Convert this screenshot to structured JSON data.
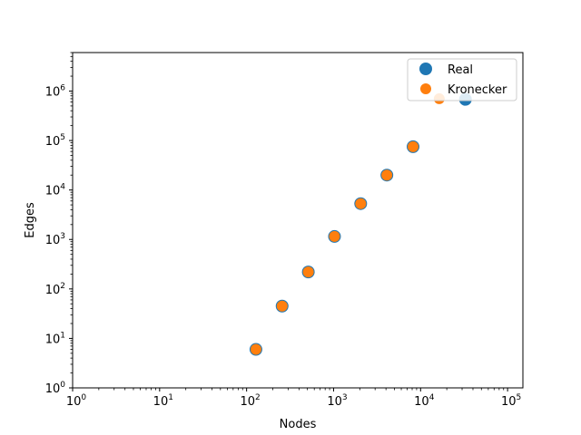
{
  "chart_data": {
    "type": "scatter",
    "title": "",
    "xlabel": "Nodes",
    "ylabel": "Edges",
    "xscale": "log",
    "yscale": "log",
    "xlim": [
      1,
      150000
    ],
    "ylim": [
      1,
      6000000
    ],
    "grid": false,
    "legend_position": "top-right",
    "x_ticks": [
      {
        "base": "10",
        "exp": "0",
        "value": 1
      },
      {
        "base": "10",
        "exp": "1",
        "value": 10
      },
      {
        "base": "10",
        "exp": "2",
        "value": 100
      },
      {
        "base": "10",
        "exp": "3",
        "value": 1000
      },
      {
        "base": "10",
        "exp": "4",
        "value": 10000
      },
      {
        "base": "10",
        "exp": "5",
        "value": 100000
      }
    ],
    "y_ticks": [
      {
        "base": "10",
        "exp": "0",
        "value": 1
      },
      {
        "base": "10",
        "exp": "1",
        "value": 10
      },
      {
        "base": "10",
        "exp": "2",
        "value": 100
      },
      {
        "base": "10",
        "exp": "3",
        "value": 1000
      },
      {
        "base": "10",
        "exp": "4",
        "value": 10000
      },
      {
        "base": "10",
        "exp": "5",
        "value": 100000
      },
      {
        "base": "10",
        "exp": "6",
        "value": 1000000
      }
    ],
    "series": [
      {
        "name": "Real",
        "color": "#1f77b4",
        "x": [
          128,
          256,
          512,
          1024,
          2048,
          4096,
          8192,
          32768
        ],
        "y": [
          6,
          45,
          220,
          1150,
          5300,
          20000,
          75000,
          680000
        ]
      },
      {
        "name": "Kronecker",
        "color": "#ff7f0e",
        "x": [
          128,
          256,
          512,
          1024,
          2048,
          4096,
          8192,
          16384
        ],
        "y": [
          6,
          45,
          220,
          1150,
          5300,
          20000,
          75000,
          700000
        ]
      }
    ]
  }
}
